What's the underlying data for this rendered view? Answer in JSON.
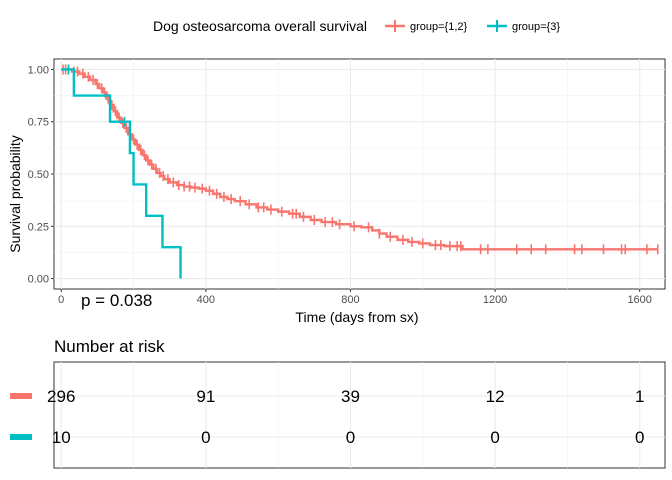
{
  "chart_data": {
    "type": "line",
    "subtype": "kaplan-meier",
    "title": "",
    "legend": {
      "title": "Dog osteosarcoma overall survival",
      "position": "top",
      "entries": [
        {
          "label": "group={1,2}",
          "color": "#F8766D"
        },
        {
          "label": "group={3}",
          "color": "#00BFC4"
        }
      ]
    },
    "xlabel": "Time (days from sx)",
    "ylabel": "Survival probability",
    "xlim": [
      -20,
      1670
    ],
    "ylim": [
      -0.05,
      1.05
    ],
    "xticks": [
      0,
      400,
      800,
      1200,
      1600
    ],
    "yticks": [
      0.0,
      0.25,
      0.5,
      0.75,
      1.0
    ],
    "ytick_labels": [
      "0.00",
      "0.25",
      "0.50",
      "0.75",
      "1.00"
    ],
    "grid": true,
    "annotation": {
      "text": "p = 0.038",
      "x": 0,
      "y": 0.03
    },
    "series": [
      {
        "name": "group={1,2}",
        "color": "#F8766D",
        "steps": [
          [
            0,
            1.0
          ],
          [
            30,
            0.99
          ],
          [
            50,
            0.98
          ],
          [
            65,
            0.965
          ],
          [
            80,
            0.95
          ],
          [
            95,
            0.93
          ],
          [
            105,
            0.91
          ],
          [
            115,
            0.89
          ],
          [
            125,
            0.86
          ],
          [
            135,
            0.83
          ],
          [
            145,
            0.8
          ],
          [
            155,
            0.77
          ],
          [
            165,
            0.745
          ],
          [
            175,
            0.72
          ],
          [
            185,
            0.69
          ],
          [
            195,
            0.665
          ],
          [
            205,
            0.64
          ],
          [
            215,
            0.615
          ],
          [
            225,
            0.59
          ],
          [
            235,
            0.565
          ],
          [
            245,
            0.545
          ],
          [
            255,
            0.525
          ],
          [
            265,
            0.505
          ],
          [
            275,
            0.49
          ],
          [
            285,
            0.475
          ],
          [
            300,
            0.46
          ],
          [
            320,
            0.447
          ],
          [
            340,
            0.44
          ],
          [
            360,
            0.435
          ],
          [
            380,
            0.43
          ],
          [
            400,
            0.42
          ],
          [
            420,
            0.405
          ],
          [
            440,
            0.39
          ],
          [
            460,
            0.38
          ],
          [
            480,
            0.37
          ],
          [
            510,
            0.355
          ],
          [
            540,
            0.34
          ],
          [
            570,
            0.33
          ],
          [
            600,
            0.32
          ],
          [
            630,
            0.31
          ],
          [
            660,
            0.295
          ],
          [
            690,
            0.28
          ],
          [
            720,
            0.27
          ],
          [
            760,
            0.26
          ],
          [
            800,
            0.25
          ],
          [
            830,
            0.245
          ],
          [
            860,
            0.23
          ],
          [
            880,
            0.215
          ],
          [
            900,
            0.2
          ],
          [
            930,
            0.185
          ],
          [
            960,
            0.175
          ],
          [
            990,
            0.168
          ],
          [
            1020,
            0.16
          ],
          [
            1060,
            0.155
          ],
          [
            1110,
            0.14
          ],
          [
            1650,
            0.14
          ]
        ],
        "censor_times": [
          5,
          12,
          20,
          35,
          45,
          60,
          75,
          88,
          100,
          112,
          120,
          130,
          140,
          150,
          160,
          170,
          180,
          190,
          200,
          210,
          220,
          230,
          240,
          250,
          262,
          272,
          282,
          295,
          310,
          325,
          340,
          355,
          370,
          390,
          410,
          430,
          450,
          470,
          495,
          520,
          545,
          560,
          580,
          610,
          640,
          650,
          670,
          700,
          730,
          750,
          770,
          810,
          850,
          880,
          910,
          945,
          970,
          1000,
          1035,
          1050,
          1075,
          1095,
          1105,
          1160,
          1180,
          1260,
          1300,
          1340,
          1420,
          1440,
          1500,
          1550,
          1560,
          1620,
          1650
        ]
      },
      {
        "name": "group={3}",
        "color": "#00BFC4",
        "steps": [
          [
            0,
            1.0
          ],
          [
            35,
            0.875
          ],
          [
            135,
            0.75
          ],
          [
            190,
            0.6
          ],
          [
            200,
            0.45
          ],
          [
            235,
            0.3
          ],
          [
            280,
            0.15
          ],
          [
            330,
            0.0
          ]
        ],
        "censor_times": [
          20,
          175
        ]
      }
    ]
  },
  "risk_table": {
    "title": "Number at risk",
    "times": [
      0,
      400,
      800,
      1200,
      1600
    ],
    "rows": [
      {
        "color": "#F8766D",
        "values": [
          "296",
          "91",
          "39",
          "12",
          "1"
        ]
      },
      {
        "color": "#00BFC4",
        "values": [
          "10",
          "0",
          "0",
          "0",
          "0"
        ]
      }
    ]
  }
}
